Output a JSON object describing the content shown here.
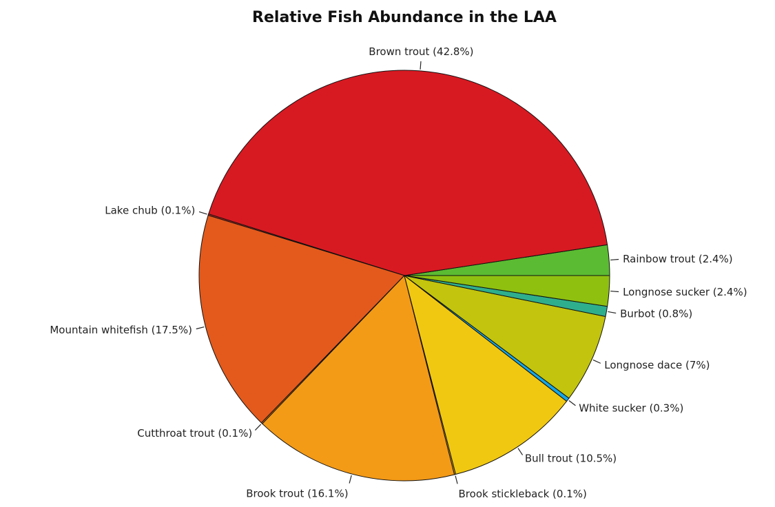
{
  "chart_data": {
    "type": "pie",
    "title": "Relative Fish Abundance in the LAA",
    "start_angle_deg": 0,
    "direction": "counterclockwise",
    "slices": [
      {
        "name": "Rainbow trout",
        "value": 2.4,
        "label": "Rainbow trout (2.4%)",
        "color": "#5bbb32"
      },
      {
        "name": "Brown trout",
        "value": 42.8,
        "label": "Brown trout (42.8%)",
        "color": "#d71a22"
      },
      {
        "name": "Lake chub",
        "value": 0.1,
        "label": "Lake chub (0.1%)",
        "color": "#dc2b1e"
      },
      {
        "name": "Mountain whitefish",
        "value": 17.5,
        "label": "Mountain whitefish (17.5%)",
        "color": "#e35a1c"
      },
      {
        "name": "Cutthroat trout",
        "value": 0.1,
        "label": "Cutthroat trout (0.1%)",
        "color": "#e77a1c"
      },
      {
        "name": "Brook trout",
        "value": 16.1,
        "label": "Brook trout (16.1%)",
        "color": "#f39a17"
      },
      {
        "name": "Brook stickleback",
        "value": 0.1,
        "label": "Brook stickleback (0.1%)",
        "color": "#f1b316"
      },
      {
        "name": "Bull trout",
        "value": 10.5,
        "label": "Bull trout (10.5%)",
        "color": "#f1c811"
      },
      {
        "name": "White sucker",
        "value": 0.3,
        "label": "White sucker (0.3%)",
        "color": "#16a5e3"
      },
      {
        "name": "Longnose dace",
        "value": 7,
        "label": "Longnose dace (7%)",
        "color": "#c2c40e"
      },
      {
        "name": "Burbot",
        "value": 0.8,
        "label": "Burbot (0.8%)",
        "color": "#2fae8d"
      },
      {
        "name": "Longnose sucker",
        "value": 2.4,
        "label": "Longnose sucker (2.4%)",
        "color": "#8fc010"
      }
    ]
  }
}
